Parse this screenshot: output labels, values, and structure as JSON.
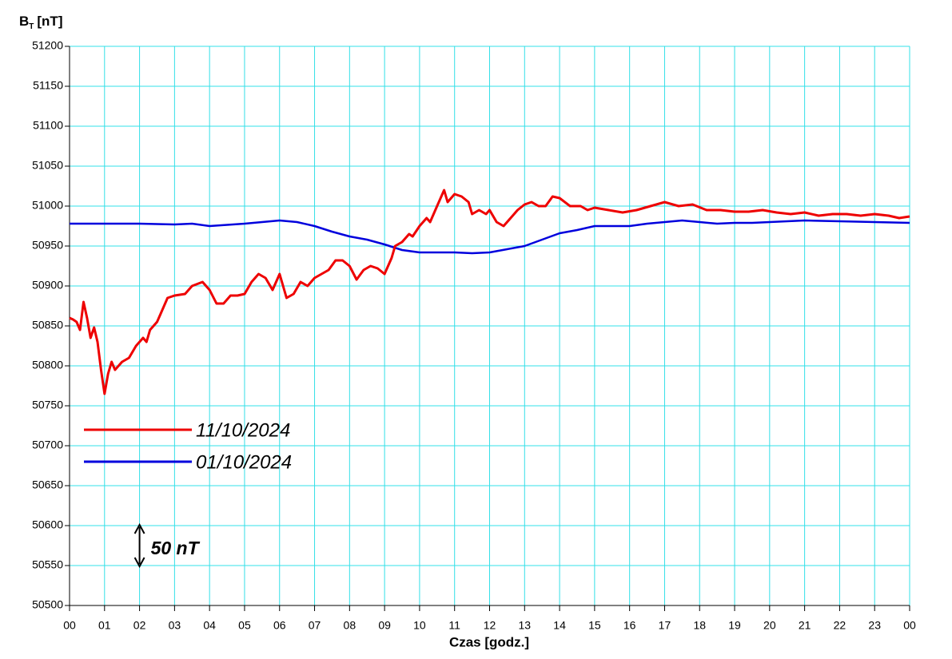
{
  "chart_data": {
    "type": "line",
    "ylabel_main": "B",
    "ylabel_sub": "T",
    "ylabel_unit": "[nT]",
    "xlabel": "Czas [godz.]",
    "xlim": [
      0,
      24
    ],
    "xticks": [
      {
        "value": 0,
        "label": "00"
      },
      {
        "value": 1,
        "label": "01"
      },
      {
        "value": 2,
        "label": "02"
      },
      {
        "value": 3,
        "label": "03"
      },
      {
        "value": 4,
        "label": "04"
      },
      {
        "value": 5,
        "label": "05"
      },
      {
        "value": 6,
        "label": "06"
      },
      {
        "value": 7,
        "label": "07"
      },
      {
        "value": 8,
        "label": "08"
      },
      {
        "value": 9,
        "label": "09"
      },
      {
        "value": 10,
        "label": "10"
      },
      {
        "value": 11,
        "label": "11"
      },
      {
        "value": 12,
        "label": "12"
      },
      {
        "value": 13,
        "label": "13"
      },
      {
        "value": 14,
        "label": "14"
      },
      {
        "value": 15,
        "label": "15"
      },
      {
        "value": 16,
        "label": "16"
      },
      {
        "value": 17,
        "label": "17"
      },
      {
        "value": 18,
        "label": "18"
      },
      {
        "value": 19,
        "label": "19"
      },
      {
        "value": 20,
        "label": "20"
      },
      {
        "value": 21,
        "label": "21"
      },
      {
        "value": 22,
        "label": "22"
      },
      {
        "value": 23,
        "label": "23"
      },
      {
        "value": 24,
        "label": "00"
      }
    ],
    "ylim": [
      50500,
      51200
    ],
    "yticks": [
      50500,
      50550,
      50600,
      50650,
      50700,
      50750,
      50800,
      50850,
      50900,
      50950,
      51000,
      51050,
      51100,
      51150,
      51200
    ],
    "grid": true,
    "grid_color": "#33e0e8",
    "legend": "left",
    "annotation": "50 nT",
    "series": [
      {
        "name": "11/10/2024",
        "color": "#ee0000",
        "x": [
          0,
          0.1,
          0.2,
          0.3,
          0.4,
          0.5,
          0.6,
          0.7,
          0.8,
          0.9,
          1.0,
          1.1,
          1.2,
          1.3,
          1.5,
          1.7,
          1.9,
          2.1,
          2.2,
          2.3,
          2.5,
          2.6,
          2.8,
          3.0,
          3.3,
          3.5,
          3.8,
          4.0,
          4.2,
          4.4,
          4.6,
          4.8,
          5.0,
          5.2,
          5.4,
          5.6,
          5.8,
          6.0,
          6.2,
          6.4,
          6.6,
          6.8,
          7.0,
          7.2,
          7.4,
          7.6,
          7.8,
          8.0,
          8.2,
          8.4,
          8.6,
          8.8,
          9.0,
          9.2,
          9.3,
          9.5,
          9.7,
          9.8,
          10.0,
          10.2,
          10.3,
          10.5,
          10.7,
          10.8,
          11.0,
          11.2,
          11.4,
          11.5,
          11.7,
          11.9,
          12.0,
          12.2,
          12.4,
          12.6,
          12.8,
          13.0,
          13.2,
          13.4,
          13.6,
          13.8,
          14.0,
          14.3,
          14.6,
          14.8,
          15.0,
          15.4,
          15.8,
          16.2,
          16.6,
          17.0,
          17.4,
          17.8,
          18.2,
          18.6,
          19.0,
          19.4,
          19.8,
          20.2,
          20.6,
          21.0,
          21.4,
          21.8,
          22.2,
          22.6,
          23.0,
          23.4,
          23.7,
          24
        ],
        "values": [
          50860,
          50858,
          50855,
          50845,
          50880,
          50860,
          50835,
          50848,
          50830,
          50795,
          50765,
          50790,
          50805,
          50795,
          50805,
          50810,
          50825,
          50835,
          50830,
          50845,
          50855,
          50865,
          50885,
          50888,
          50890,
          50900,
          50905,
          50895,
          50878,
          50878,
          50888,
          50888,
          50890,
          50905,
          50915,
          50910,
          50895,
          50915,
          50885,
          50890,
          50905,
          50900,
          50910,
          50915,
          50920,
          50932,
          50932,
          50925,
          50908,
          50920,
          50925,
          50922,
          50915,
          50935,
          50950,
          50955,
          50965,
          50962,
          50975,
          50985,
          50980,
          51000,
          51020,
          51005,
          51015,
          51012,
          51005,
          50990,
          50995,
          50990,
          50995,
          50980,
          50975,
          50985,
          50995,
          51002,
          51005,
          51000,
          51000,
          51012,
          51010,
          51000,
          51000,
          50995,
          50998,
          50995,
          50992,
          50995,
          51000,
          51005,
          51000,
          51002,
          50995,
          50995,
          50993,
          50993,
          50995,
          50992,
          50990,
          50992,
          50988,
          50990,
          50990,
          50988,
          50990,
          50988,
          50985,
          50987
        ]
      },
      {
        "name": "01/10/2024",
        "color": "#0000dd",
        "x": [
          0,
          1,
          2,
          3,
          3.5,
          4,
          5,
          5.5,
          6,
          6.5,
          7,
          7.5,
          8,
          8.5,
          9,
          9.5,
          10,
          11,
          11.5,
          12,
          12.5,
          13,
          13.5,
          14,
          14.5,
          15,
          15.5,
          16,
          16.5,
          17,
          17.5,
          18,
          18.5,
          19,
          19.5,
          20,
          20.5,
          21,
          22,
          23,
          24
        ],
        "values": [
          50978,
          50978,
          50978,
          50977,
          50978,
          50975,
          50978,
          50980,
          50982,
          50980,
          50975,
          50968,
          50962,
          50958,
          50952,
          50945,
          50942,
          50942,
          50941,
          50942,
          50946,
          50950,
          50958,
          50966,
          50970,
          50975,
          50975,
          50975,
          50978,
          50980,
          50982,
          50980,
          50978,
          50979,
          50979,
          50980,
          50981,
          50982,
          50981,
          50980,
          50979
        ]
      }
    ]
  }
}
